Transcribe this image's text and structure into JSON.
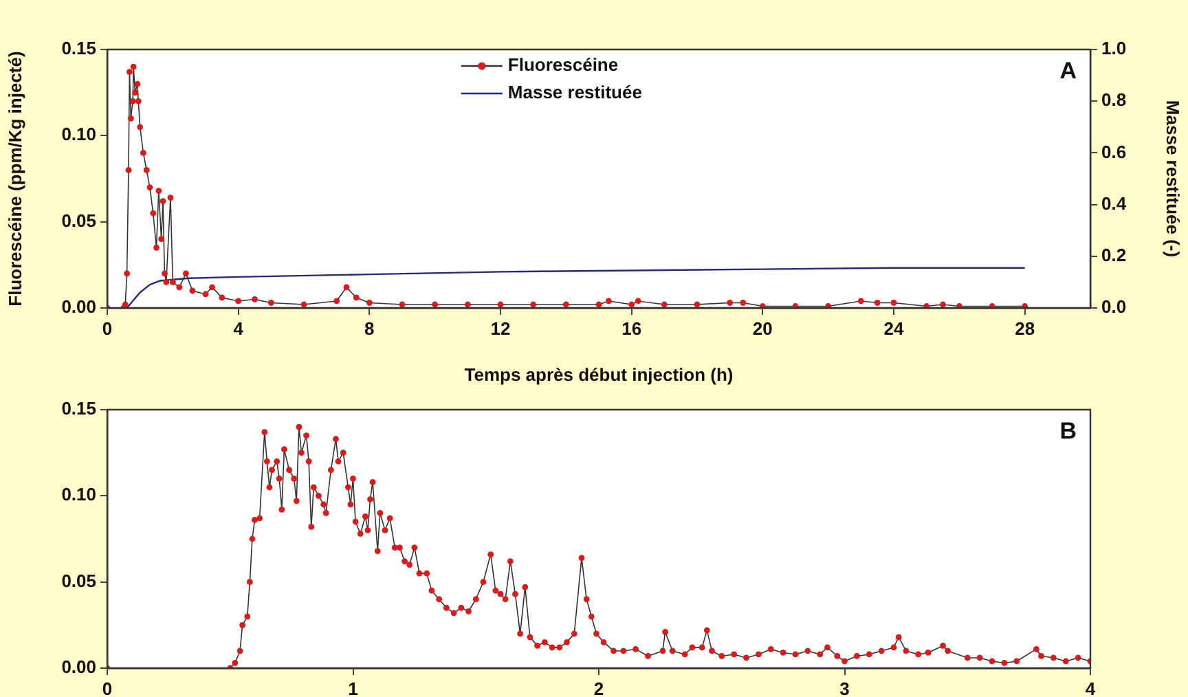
{
  "chart_data": [
    {
      "type": "line",
      "xlabel": "Temps après début injection (h)",
      "ylabel": "Fluorescéine (ppm/Kg injecté)",
      "y2label": "Masse restituée (-)",
      "annotations": [
        "A"
      ],
      "legend": "top",
      "grid": false,
      "xlim": [
        0,
        30
      ],
      "xticks": [
        0,
        4,
        8,
        12,
        16,
        20,
        24,
        28
      ],
      "ylim": [
        0,
        0.15
      ],
      "yticks": [
        {
          "value": 0,
          "label": "0.00"
        },
        {
          "value": 0.05,
          "label": "0.05"
        },
        {
          "value": 0.1,
          "label": "0.10"
        },
        {
          "value": 0.15,
          "label": "0.15"
        }
      ],
      "y2lim": [
        0,
        1
      ],
      "y2ticks": [
        {
          "value": 0,
          "label": "0.0"
        },
        {
          "value": 0.2,
          "label": "0.2"
        },
        {
          "value": 0.4,
          "label": "0.4"
        },
        {
          "value": 0.6,
          "label": "0.6"
        },
        {
          "value": 0.8,
          "label": "0.8"
        },
        {
          "value": 1,
          "label": "1.0"
        }
      ],
      "series": [
        {
          "name": "Fluorescéine",
          "color": "#dd1a1a",
          "marker": "circle",
          "x": [
            0,
            0.5,
            0.55,
            0.6,
            0.65,
            0.68,
            0.72,
            0.78,
            0.8,
            0.85,
            0.92,
            0.95,
            1.0,
            1.1,
            1.2,
            1.3,
            1.4,
            1.5,
            1.57,
            1.65,
            1.7,
            1.75,
            1.8,
            1.93,
            2.0,
            2.2,
            2.4,
            2.6,
            3.0,
            3.2,
            3.5,
            4,
            4.5,
            5,
            6,
            7,
            7.3,
            7.6,
            8,
            9,
            10,
            11,
            12,
            13,
            14,
            15,
            15.3,
            16,
            16.2,
            17,
            18,
            19,
            19.4,
            20,
            21,
            22,
            23,
            23.5,
            24,
            25,
            25.5,
            26,
            27,
            28
          ],
          "values": [
            0,
            0,
            0.002,
            0.02,
            0.08,
            0.137,
            0.11,
            0.12,
            0.14,
            0.125,
            0.13,
            0.12,
            0.105,
            0.09,
            0.08,
            0.07,
            0.055,
            0.035,
            0.068,
            0.04,
            0.062,
            0.02,
            0.015,
            0.064,
            0.015,
            0.012,
            0.02,
            0.01,
            0.008,
            0.012,
            0.006,
            0.004,
            0.005,
            0.003,
            0.002,
            0.004,
            0.012,
            0.006,
            0.003,
            0.002,
            0.002,
            0.002,
            0.002,
            0.002,
            0.002,
            0.002,
            0.004,
            0.002,
            0.004,
            0.002,
            0.002,
            0.003,
            0.003,
            0.001,
            0.001,
            0.001,
            0.004,
            0.003,
            0.003,
            0.001,
            0.002,
            0.001,
            0.001,
            0.001
          ]
        },
        {
          "name": "Masse restituée",
          "color": "#1f2a80",
          "axis": "y2",
          "marker": "none",
          "x": [
            0.6,
            0.8,
            1.0,
            1.3,
            1.6,
            2.0,
            2.5,
            4,
            8,
            12,
            16,
            20,
            24,
            28
          ],
          "values": [
            0,
            0.03,
            0.06,
            0.09,
            0.105,
            0.11,
            0.115,
            0.12,
            0.13,
            0.14,
            0.145,
            0.15,
            0.155,
            0.155
          ]
        }
      ]
    },
    {
      "type": "line",
      "annotations": [
        "B"
      ],
      "grid": false,
      "xlim": [
        0,
        4
      ],
      "xticks": [
        0,
        1,
        2,
        3,
        4
      ],
      "ylim": [
        0,
        0.15
      ],
      "yticks": [
        {
          "value": 0,
          "label": "0.00"
        },
        {
          "value": 0.05,
          "label": "0.05"
        },
        {
          "value": 0.1,
          "label": "0.10"
        },
        {
          "value": 0.15,
          "label": "0.15"
        }
      ],
      "series": [
        {
          "color": "#dd1a1a",
          "marker": "circle",
          "x": [
            0,
            0.5,
            0.52,
            0.54,
            0.55,
            0.57,
            0.58,
            0.59,
            0.6,
            0.62,
            0.64,
            0.65,
            0.66,
            0.67,
            0.69,
            0.7,
            0.71,
            0.72,
            0.74,
            0.76,
            0.77,
            0.78,
            0.79,
            0.81,
            0.82,
            0.83,
            0.84,
            0.86,
            0.88,
            0.89,
            0.91,
            0.93,
            0.94,
            0.96,
            0.98,
            0.99,
            1.0,
            1.01,
            1.03,
            1.05,
            1.06,
            1.07,
            1.08,
            1.1,
            1.11,
            1.13,
            1.15,
            1.17,
            1.19,
            1.21,
            1.23,
            1.25,
            1.27,
            1.3,
            1.32,
            1.35,
            1.38,
            1.41,
            1.44,
            1.47,
            1.5,
            1.53,
            1.56,
            1.58,
            1.6,
            1.62,
            1.64,
            1.66,
            1.68,
            1.7,
            1.72,
            1.75,
            1.78,
            1.81,
            1.84,
            1.87,
            1.9,
            1.93,
            1.95,
            1.97,
            1.99,
            2.02,
            2.06,
            2.1,
            2.15,
            2.2,
            2.26,
            2.27,
            2.3,
            2.35,
            2.38,
            2.42,
            2.44,
            2.46,
            2.5,
            2.55,
            2.6,
            2.65,
            2.7,
            2.75,
            2.8,
            2.85,
            2.9,
            2.93,
            2.97,
            3.0,
            3.05,
            3.1,
            3.15,
            3.2,
            3.22,
            3.25,
            3.3,
            3.34,
            3.4,
            3.42,
            3.5,
            3.55,
            3.6,
            3.65,
            3.7,
            3.78,
            3.8,
            3.85,
            3.9,
            3.95,
            4.0
          ],
          "values": [
            0,
            0,
            0.003,
            0.01,
            0.025,
            0.03,
            0.05,
            0.075,
            0.086,
            0.087,
            0.137,
            0.12,
            0.105,
            0.115,
            0.12,
            0.11,
            0.092,
            0.127,
            0.115,
            0.11,
            0.097,
            0.14,
            0.125,
            0.135,
            0.12,
            0.082,
            0.105,
            0.1,
            0.095,
            0.09,
            0.115,
            0.133,
            0.12,
            0.125,
            0.105,
            0.095,
            0.11,
            0.085,
            0.078,
            0.088,
            0.08,
            0.098,
            0.108,
            0.068,
            0.09,
            0.08,
            0.087,
            0.07,
            0.07,
            0.062,
            0.06,
            0.07,
            0.055,
            0.055,
            0.045,
            0.04,
            0.035,
            0.032,
            0.035,
            0.033,
            0.04,
            0.05,
            0.066,
            0.045,
            0.043,
            0.04,
            0.062,
            0.043,
            0.02,
            0.047,
            0.018,
            0.013,
            0.015,
            0.012,
            0.012,
            0.015,
            0.02,
            0.064,
            0.04,
            0.03,
            0.02,
            0.015,
            0.01,
            0.01,
            0.011,
            0.007,
            0.01,
            0.021,
            0.01,
            0.008,
            0.012,
            0.012,
            0.022,
            0.01,
            0.007,
            0.008,
            0.006,
            0.008,
            0.011,
            0.009,
            0.008,
            0.01,
            0.008,
            0.012,
            0.007,
            0.004,
            0.007,
            0.008,
            0.01,
            0.012,
            0.018,
            0.01,
            0.008,
            0.009,
            0.013,
            0.01,
            0.006,
            0.006,
            0.004,
            0.003,
            0.004,
            0.011,
            0.007,
            0.006,
            0.004,
            0.006,
            0.004
          ]
        }
      ]
    }
  ]
}
